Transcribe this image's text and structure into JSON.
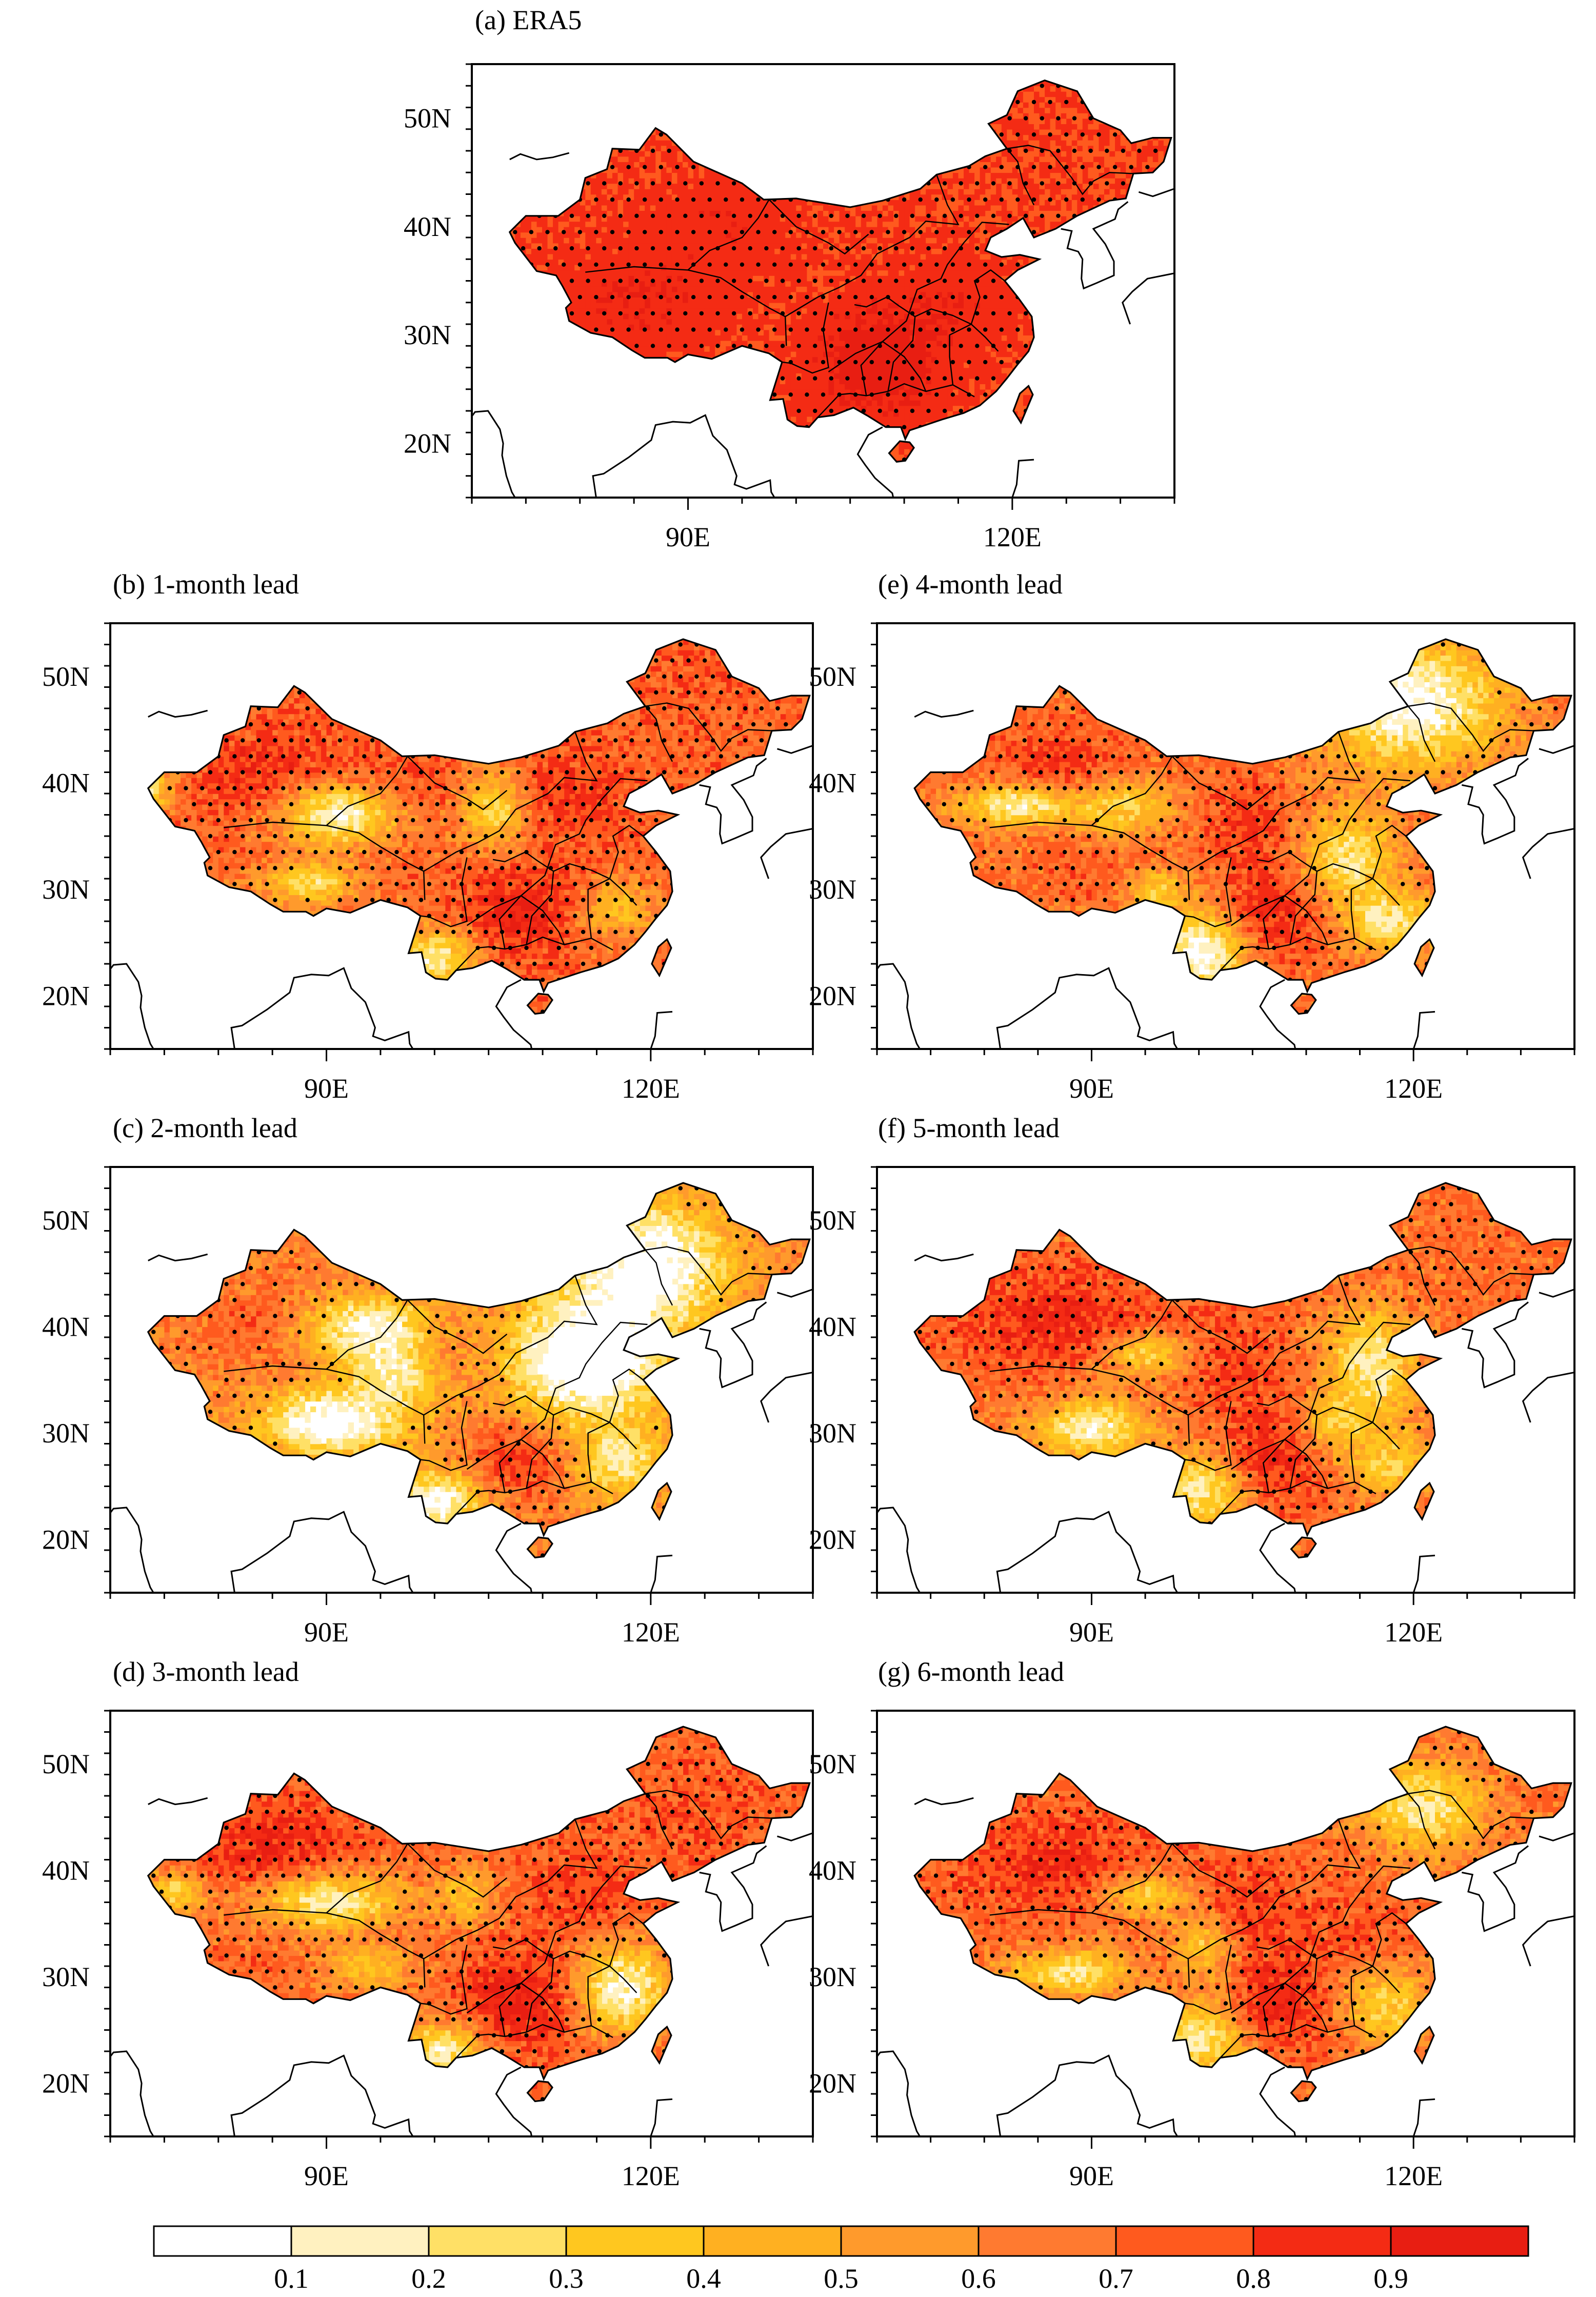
{
  "figure": {
    "panels": [
      {
        "id": "a",
        "title": "(a) ERA5",
        "intensity": 1.0,
        "stipple_density": 1.0
      },
      {
        "id": "b",
        "title": "(b) 1-month lead",
        "intensity": 0.72,
        "stipple_density": 0.85
      },
      {
        "id": "c",
        "title": "(c) 2-month lead",
        "intensity": 0.45,
        "stipple_density": 0.55
      },
      {
        "id": "d",
        "title": "(d) 3-month lead",
        "intensity": 0.72,
        "stipple_density": 0.8
      },
      {
        "id": "e",
        "title": "(e) 4-month lead",
        "intensity": 0.6,
        "stipple_density": 0.7
      },
      {
        "id": "f",
        "title": "(f) 5-month lead",
        "intensity": 0.66,
        "stipple_density": 0.75
      },
      {
        "id": "g",
        "title": "(g) 6-month lead",
        "intensity": 0.66,
        "stipple_density": 0.75
      }
    ],
    "y_ticks": [
      "20N",
      "30N",
      "40N",
      "50N"
    ],
    "x_ticks": [
      "90E",
      "120E"
    ],
    "colorbar": {
      "levels": [
        "0.1",
        "0.2",
        "0.3",
        "0.4",
        "0.5",
        "0.6",
        "0.7",
        "0.8",
        "0.9"
      ],
      "colors": [
        "#ffffff",
        "#fff1c0",
        "#ffe066",
        "#ffc71f",
        "#ffb021",
        "#ff9a2c",
        "#ff7a30",
        "#ff5a1e",
        "#f42b14",
        "#e81e12"
      ]
    }
  },
  "chart_data": {
    "type": "heatmap",
    "title": "",
    "panels": [
      "(a) ERA5",
      "(b) 1-month lead",
      "(c) 2-month lead",
      "(d) 3-month lead",
      "(e) 4-month lead",
      "(f) 5-month lead",
      "(g) 6-month lead"
    ],
    "xlabel": "",
    "ylabel": "",
    "x_ticks": [
      "90E",
      "120E"
    ],
    "y_ticks": [
      "20N",
      "30N",
      "40N",
      "50N"
    ],
    "xlim": [
      70,
      135
    ],
    "ylim": [
      15,
      55
    ],
    "colorbar_levels": [
      0.1,
      0.2,
      0.3,
      0.4,
      0.5,
      0.6,
      0.7,
      0.8,
      0.9
    ]
  }
}
